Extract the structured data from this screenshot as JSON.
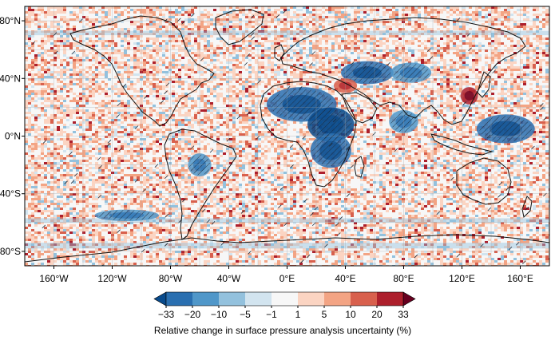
{
  "map": {
    "title": "",
    "projection": "plate-carree",
    "lon_range": [
      -180,
      180
    ],
    "lat_range": [
      -90,
      90
    ],
    "lat_ticks": [
      {
        "value": 80,
        "label": "80°N"
      },
      {
        "value": 40,
        "label": "40°N"
      },
      {
        "value": 0,
        "label": "0°N"
      },
      {
        "value": -40,
        "label": "40°S"
      },
      {
        "value": -80,
        "label": "80°S"
      }
    ],
    "lon_ticks": [
      {
        "value": -160,
        "label": "160°W"
      },
      {
        "value": -120,
        "label": "120°W"
      },
      {
        "value": -80,
        "label": "80°W"
      },
      {
        "value": -40,
        "label": "40°W"
      },
      {
        "value": 0,
        "label": "0°E"
      },
      {
        "value": 40,
        "label": "40°E"
      },
      {
        "value": 80,
        "label": "80°E"
      },
      {
        "value": 120,
        "label": "120°E"
      },
      {
        "value": 160,
        "label": "160°E"
      }
    ],
    "colors": {
      "coast": "#111111",
      "grid": "#9aa0a6",
      "hatch": "#1b2a3a"
    }
  },
  "colorbar": {
    "label": "Relative change in surface pressure analysis uncertainty (%)",
    "boundaries": [
      "−33",
      "−20",
      "−10",
      "−5",
      "−1",
      "1",
      "5",
      "10",
      "20",
      "33"
    ],
    "colors": [
      "#084a8c",
      "#2a6fb0",
      "#5097c9",
      "#93c1dd",
      "#d2e4ef",
      "#f7f7f7",
      "#fbd4c2",
      "#f3a484",
      "#d8604d",
      "#ad1f2c",
      "#67001f"
    ],
    "extend": "both"
  }
}
